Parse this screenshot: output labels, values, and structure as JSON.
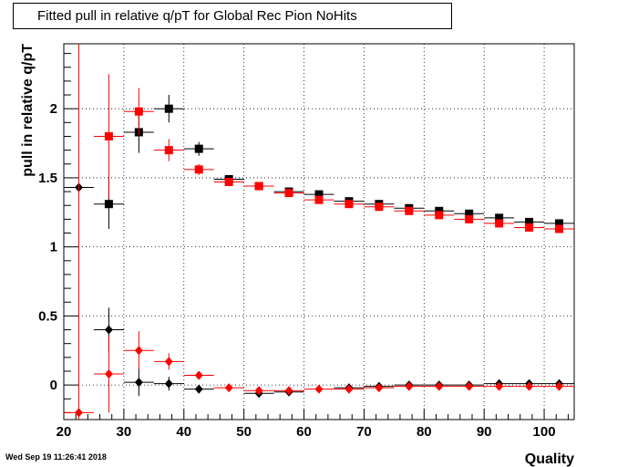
{
  "timestamp": "Wed Sep 19 11:26:41 2018",
  "chart_data": {
    "type": "scatter",
    "title": "Fitted pull in relative q/pT for Global Rec Pion NoHits",
    "xlabel": "Quality",
    "ylabel": "pull in relative q/pT",
    "xlim": [
      20,
      105
    ],
    "ylim": [
      -0.25,
      2.47
    ],
    "grid": true,
    "xticks": [
      20,
      30,
      40,
      50,
      60,
      70,
      80,
      90,
      100
    ],
    "yticks": [
      0,
      0.5,
      1,
      1.5,
      2
    ],
    "x": [
      22.5,
      27.5,
      32.5,
      37.5,
      42.5,
      47.5,
      52.5,
      57.5,
      62.5,
      67.5,
      72.5,
      77.5,
      82.5,
      87.5,
      92.5,
      97.5,
      102.5
    ],
    "x_bin_halfwidth": 2.5,
    "series": [
      {
        "color": "#000000",
        "marker": "square",
        "values": [
          null,
          1.31,
          1.83,
          2.0,
          1.71,
          1.49,
          1.44,
          1.4,
          1.38,
          1.33,
          1.31,
          1.28,
          1.26,
          1.24,
          1.21,
          1.18,
          1.17
        ],
        "errors": [
          null,
          0.18,
          0.15,
          0.1,
          0.05,
          0.02,
          0.02,
          0.02,
          0.02,
          0.02,
          0.02,
          0.02,
          0.02,
          0.02,
          0.02,
          0.02,
          0.02
        ]
      },
      {
        "color": "#ff0000",
        "marker": "square",
        "values": [
          null,
          1.8,
          1.98,
          1.7,
          1.56,
          1.47,
          1.44,
          1.39,
          1.34,
          1.31,
          1.29,
          1.26,
          1.23,
          1.2,
          1.17,
          1.14,
          1.13
        ],
        "errors": [
          null,
          0.45,
          0.17,
          0.08,
          0.04,
          0.02,
          0.02,
          0.02,
          0.02,
          0.02,
          0.02,
          0.02,
          0.02,
          0.02,
          0.02,
          0.02,
          0.02
        ]
      },
      {
        "color": "#000000",
        "marker": "diamond",
        "values": [
          1.43,
          0.4,
          0.02,
          0.01,
          -0.03,
          null,
          -0.06,
          -0.05,
          null,
          -0.02,
          -0.01,
          0.0,
          0.0,
          0.0,
          0.01,
          0.01,
          0.01
        ],
        "errors": [
          null,
          0.16,
          0.1,
          0.05,
          0.02,
          null,
          0.02,
          0.02,
          null,
          0.02,
          0.02,
          0.02,
          0.02,
          0.02,
          0.02,
          0.02,
          0.02
        ]
      },
      {
        "color": "#ff0000",
        "marker": "diamond",
        "values": [
          -0.2,
          0.08,
          0.25,
          0.17,
          0.07,
          -0.02,
          -0.04,
          -0.04,
          -0.03,
          -0.03,
          -0.02,
          -0.01,
          -0.01,
          -0.01,
          -0.01,
          -0.01,
          -0.01
        ],
        "errors": [
          2.8,
          0.28,
          0.14,
          0.06,
          0.03,
          0.02,
          0.02,
          0.02,
          0.02,
          0.02,
          0.02,
          0.02,
          0.02,
          0.02,
          0.02,
          0.02,
          0.02
        ]
      }
    ]
  }
}
